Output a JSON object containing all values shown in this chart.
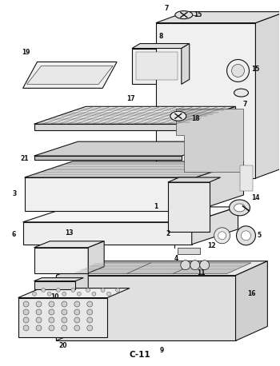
{
  "title": "C-11",
  "bg_color": "#ffffff",
  "fig_width": 3.5,
  "fig_height": 4.58,
  "dpi": 100,
  "skew": 0.28,
  "label_fs": 5.5,
  "label_color": "#111111"
}
